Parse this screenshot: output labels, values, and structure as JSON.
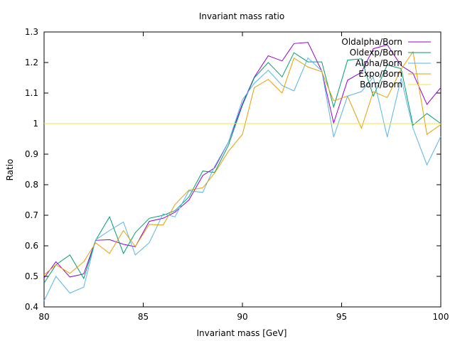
{
  "chart_data": {
    "type": "line",
    "title": "Invariant mass ratio",
    "xlabel": "Invariant mass [GeV]",
    "ylabel": "Ratio",
    "xlim": [
      80,
      100
    ],
    "ylim": [
      0.4,
      1.3
    ],
    "xticks": [
      80,
      85,
      90,
      95,
      100
    ],
    "yticks": [
      0.4,
      0.5,
      0.6,
      0.7,
      0.8,
      0.9,
      1,
      1.1,
      1.2,
      1.3
    ],
    "grid": false,
    "legend_position": "top-right",
    "x": [
      80,
      80.6,
      81.3,
      82.0,
      82.6,
      83.3,
      84.0,
      84.6,
      85.3,
      86.0,
      86.6,
      87.3,
      88.0,
      88.6,
      89.3,
      90.0,
      90.6,
      91.3,
      92.0,
      92.6,
      93.3,
      94.0,
      94.6,
      95.3,
      96.0,
      96.6,
      97.3,
      98.0,
      98.6,
      99.3,
      100
    ],
    "series": [
      {
        "name": "Oldalpha/Born",
        "color": "#9400d3",
        "values": [
          0.495,
          0.548,
          0.498,
          0.508,
          0.618,
          0.62,
          0.605,
          0.597,
          0.68,
          0.69,
          0.71,
          0.75,
          0.83,
          0.855,
          0.94,
          1.065,
          1.152,
          1.222,
          1.205,
          1.262,
          1.266,
          1.172,
          1.002,
          1.142,
          1.168,
          1.245,
          1.258,
          1.19,
          1.165,
          1.063,
          1.118
        ]
      },
      {
        "name": "Oldexp/Born",
        "color": "#009e73",
        "values": [
          0.478,
          0.538,
          0.57,
          0.493,
          0.618,
          0.695,
          0.575,
          0.643,
          0.69,
          0.7,
          0.715,
          0.76,
          0.845,
          0.84,
          0.93,
          1.06,
          1.15,
          1.2,
          1.153,
          1.232,
          1.202,
          1.202,
          1.054,
          1.208,
          1.212,
          1.09,
          1.192,
          1.18,
          0.995,
          1.033,
          1.0
        ]
      },
      {
        "name": "Alpha/Born",
        "color": "#56b4e9",
        "values": [
          0.42,
          0.5,
          0.445,
          0.465,
          0.62,
          0.65,
          0.678,
          0.57,
          0.61,
          0.705,
          0.695,
          0.78,
          0.775,
          0.86,
          0.94,
          1.078,
          1.132,
          1.175,
          1.125,
          1.107,
          1.215,
          1.173,
          0.956,
          1.09,
          1.105,
          1.152,
          0.956,
          1.148,
          0.985,
          0.865,
          0.958
        ]
      },
      {
        "name": "Expo/Born",
        "color": "#e69f00",
        "values": [
          0.505,
          0.538,
          0.51,
          0.548,
          0.61,
          0.575,
          0.65,
          0.598,
          0.67,
          0.668,
          0.735,
          0.782,
          0.79,
          0.838,
          0.91,
          0.965,
          1.118,
          1.145,
          1.1,
          1.215,
          1.185,
          1.17,
          1.075,
          1.09,
          0.985,
          1.105,
          1.085,
          1.178,
          1.235,
          0.965,
          0.997
        ]
      },
      {
        "name": "Born/Born",
        "color": "#f0e442",
        "values": [
          1,
          1,
          1,
          1,
          1,
          1,
          1,
          1,
          1,
          1,
          1,
          1,
          1,
          1,
          1,
          1,
          1,
          1,
          1,
          1,
          1,
          1,
          1,
          1,
          1,
          1,
          1,
          1,
          1,
          1,
          1
        ]
      }
    ]
  }
}
